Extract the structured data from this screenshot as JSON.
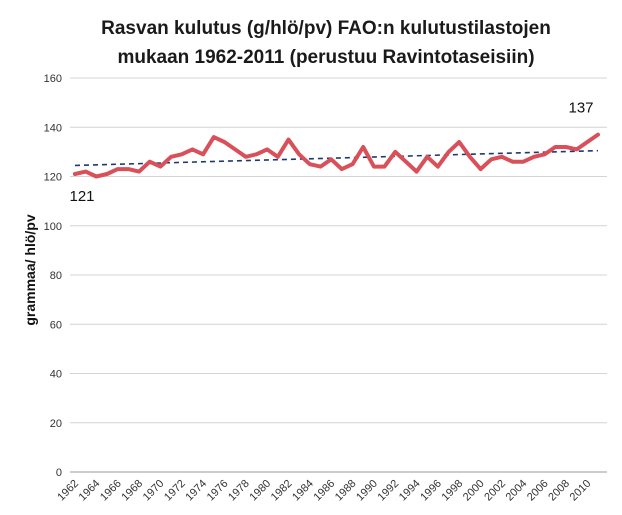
{
  "chart_data": {
    "type": "line",
    "title_lines": [
      "Rasvan kulutus (g/hlö/pv) FAO:n kulutustilastojen",
      "mukaan 1962-2011 (perustuu Ravintotaseisiin)"
    ],
    "xlabel": "",
    "ylabel": "grammaa/ hlö/pv",
    "ylim": [
      0,
      160
    ],
    "yticks": [
      0,
      20,
      40,
      60,
      80,
      100,
      120,
      140,
      160
    ],
    "xticks": [
      1962,
      1964,
      1966,
      1968,
      1970,
      1972,
      1974,
      1976,
      1978,
      1980,
      1982,
      1984,
      1986,
      1988,
      1990,
      1992,
      1994,
      1996,
      1998,
      2000,
      2002,
      2004,
      2006,
      2008,
      2010
    ],
    "xlim": [
      1962,
      2011
    ],
    "grid": true,
    "series": [
      {
        "color": "#d9505a",
        "x": [
          1962,
          1963,
          1964,
          1965,
          1966,
          1967,
          1968,
          1969,
          1970,
          1971,
          1972,
          1973,
          1974,
          1975,
          1976,
          1977,
          1978,
          1979,
          1980,
          1981,
          1982,
          1983,
          1984,
          1985,
          1986,
          1987,
          1988,
          1989,
          1990,
          1991,
          1992,
          1993,
          1994,
          1995,
          1996,
          1997,
          1998,
          1999,
          2000,
          2001,
          2002,
          2003,
          2004,
          2005,
          2006,
          2007,
          2008,
          2009,
          2010,
          2011
        ],
        "values": [
          121,
          122,
          120,
          121,
          123,
          123,
          122,
          126,
          124,
          128,
          129,
          131,
          129,
          136,
          134,
          131,
          128,
          129,
          131,
          128,
          135,
          129,
          125,
          124,
          127,
          123,
          125,
          132,
          124,
          124,
          130,
          126,
          122,
          128,
          124,
          130,
          134,
          128,
          123,
          127,
          128,
          126,
          126,
          128,
          129,
          132,
          132,
          131,
          134,
          137
        ]
      }
    ],
    "trendline": {
      "color": "#1f3a6e",
      "x": [
        1962,
        2011
      ],
      "values": [
        124.5,
        130.5
      ]
    },
    "annotations": [
      {
        "text": "121",
        "x": 1962,
        "y": 121,
        "position": "below"
      },
      {
        "text": "137",
        "x": 2011,
        "y": 137,
        "position": "above"
      }
    ]
  }
}
